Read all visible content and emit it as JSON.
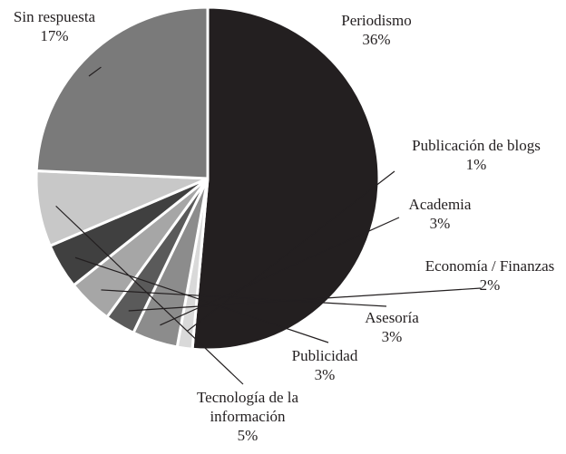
{
  "chart_data": {
    "type": "pie",
    "categories": [
      "Periodismo",
      "Publicación de blogs",
      "Academia",
      "Economía / Finanzas",
      "Asesoría",
      "Publicidad",
      "Tecnología de la información",
      "Sin respuesta"
    ],
    "values": [
      36,
      1,
      3,
      2,
      3,
      3,
      5,
      17
    ],
    "value_labels": [
      "36%",
      "1%",
      "3%",
      "2%",
      "3%",
      "3%",
      "5%",
      "17%"
    ],
    "colors": [
      "#231f20",
      "#d9d9d9",
      "#8c8c8c",
      "#5a5a5a",
      "#a6a6a6",
      "#404040",
      "#c8c8c8",
      "#7a7a7a"
    ]
  }
}
